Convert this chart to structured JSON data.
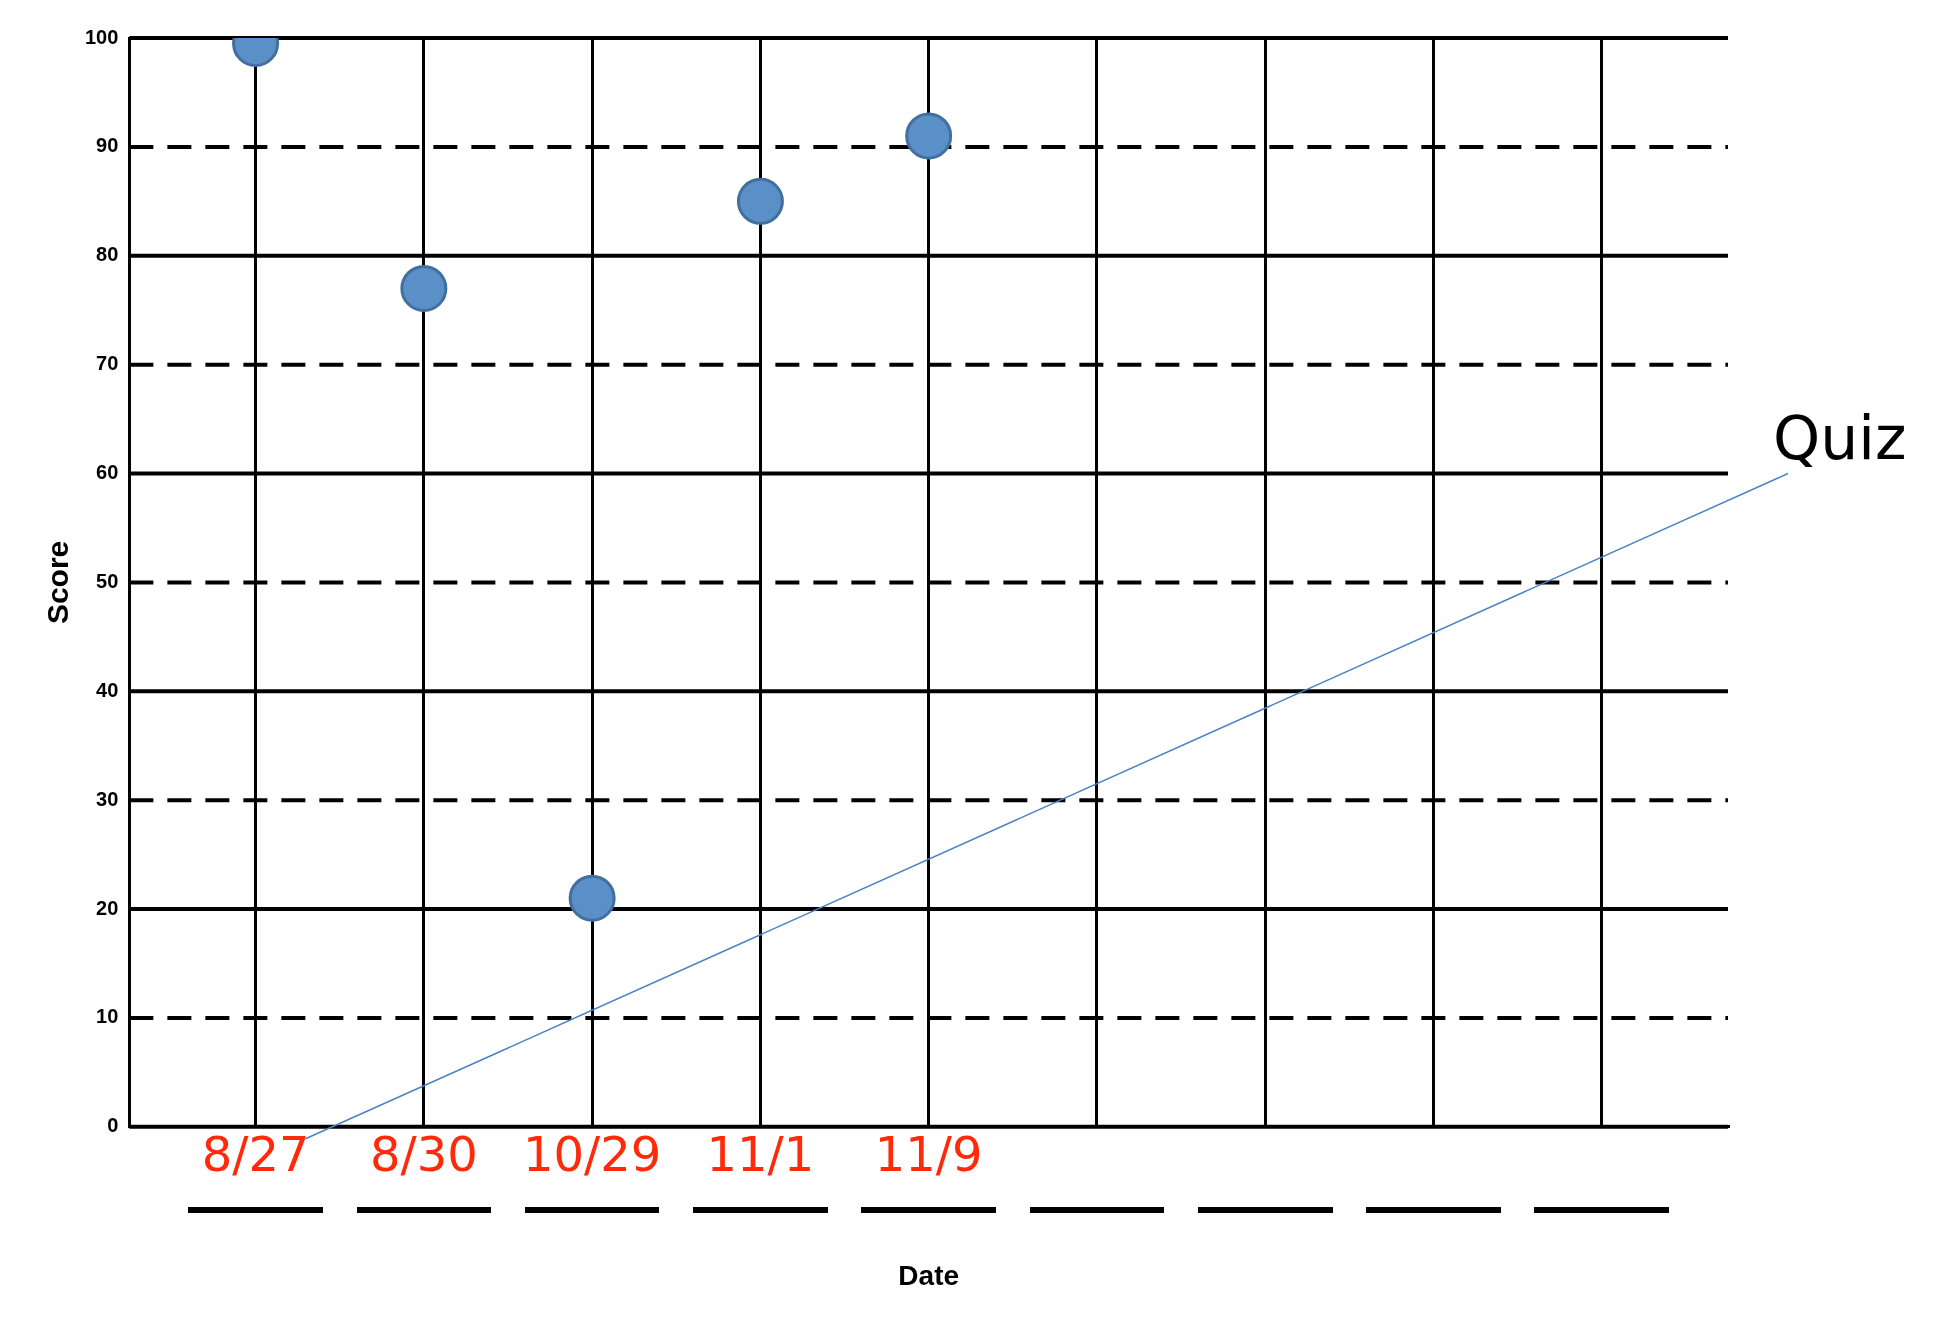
{
  "chart_data": {
    "type": "scatter",
    "xlabel": "Date",
    "ylabel": "Score",
    "categories": [
      "8/27",
      "8/30",
      "10/29",
      "11/1",
      "11/9",
      null,
      null,
      null,
      null
    ],
    "series": [
      {
        "color": "#5b8fc8",
        "values": [
          99.5,
          77,
          21,
          85,
          91,
          null,
          null,
          null,
          null
        ]
      }
    ],
    "ylim": [
      0,
      100
    ],
    "yticks": [
      0,
      10,
      20,
      30,
      40,
      50,
      60,
      70,
      80,
      90,
      100
    ],
    "grid": true,
    "marker": "circle",
    "legend": false,
    "annotations": [
      "Quiz"
    ]
  }
}
